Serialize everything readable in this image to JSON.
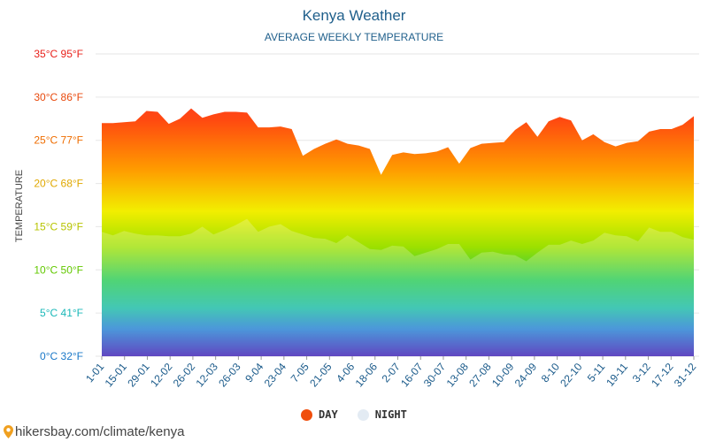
{
  "chart_data": {
    "type": "area",
    "title": "Kenya Weather",
    "subtitle": "AVERAGE WEEKLY TEMPERATURE",
    "ylabel": "TEMPERATURE",
    "xlabel": "",
    "ylim": [
      0,
      35
    ],
    "y_ticks": [
      {
        "value": 35,
        "label": "35°C 95°F",
        "color": "#e8201a"
      },
      {
        "value": 30,
        "label": "30°C 86°F",
        "color": "#e84a0e"
      },
      {
        "value": 25,
        "label": "25°C 77°F",
        "color": "#ef6d00"
      },
      {
        "value": 20,
        "label": "20°C 68°F",
        "color": "#e0a800"
      },
      {
        "value": 15,
        "label": "15°C 59°F",
        "color": "#b7c400"
      },
      {
        "value": 10,
        "label": "10°C 50°F",
        "color": "#62c800"
      },
      {
        "value": 5,
        "label": "5°C 41°F",
        "color": "#1ab8b8"
      },
      {
        "value": 0,
        "label": "0°C 32°F",
        "color": "#1a78c8"
      }
    ],
    "grid": true,
    "legend_position": "bottom-center",
    "x_tick_labels": [
      "1-01",
      "15-01",
      "29-01",
      "12-02",
      "26-02",
      "12-03",
      "26-03",
      "9-04",
      "23-04",
      "7-05",
      "21-05",
      "4-06",
      "18-06",
      "2-07",
      "16-07",
      "30-07",
      "13-08",
      "27-08",
      "10-09",
      "24-09",
      "8-10",
      "22-10",
      "5-11",
      "19-11",
      "3-12",
      "17-12",
      "31-12"
    ],
    "series": [
      {
        "name": "DAY",
        "color": "#f04e0c",
        "values": [
          27.0,
          27.0,
          27.1,
          27.2,
          28.4,
          28.3,
          26.9,
          27.5,
          28.7,
          27.6,
          28.0,
          28.3,
          28.3,
          28.2,
          26.5,
          26.5,
          26.6,
          26.3,
          23.2,
          24.0,
          24.6,
          25.1,
          24.6,
          24.4,
          24.0,
          21.0,
          23.3,
          23.6,
          23.4,
          23.5,
          23.7,
          24.2,
          22.3,
          24.1,
          24.6,
          24.7,
          24.8,
          26.2,
          27.1,
          25.4,
          27.2,
          27.7,
          27.3,
          25.0,
          25.7,
          24.8,
          24.3,
          24.7,
          24.9,
          26.0,
          26.3,
          26.3,
          26.8,
          27.8
        ]
      },
      {
        "name": "NIGHT",
        "color": "#e8eef4",
        "values": [
          14.4,
          14.0,
          14.5,
          14.2,
          14.0,
          14.0,
          13.9,
          13.9,
          14.2,
          15.0,
          14.1,
          14.6,
          15.2,
          15.9,
          14.4,
          15.0,
          15.3,
          14.5,
          14.1,
          13.7,
          13.6,
          13.1,
          14.0,
          13.2,
          12.4,
          12.3,
          12.8,
          12.7,
          11.6,
          12.0,
          12.4,
          13.0,
          13.0,
          11.2,
          12.0,
          12.1,
          11.8,
          11.7,
          11.0,
          12.0,
          12.9,
          12.9,
          13.4,
          13.0,
          13.4,
          14.3,
          14.0,
          13.9,
          13.3,
          14.9,
          14.4,
          14.4,
          13.8,
          13.5
        ]
      }
    ]
  },
  "legend": {
    "day": "DAY",
    "night": "NIGHT"
  },
  "source": "hikersbay.com/climate/kenya",
  "colors": {
    "title": "#1f5f8b",
    "day_dot": "#f04e0c",
    "night_dot": "#e3ebf3"
  }
}
